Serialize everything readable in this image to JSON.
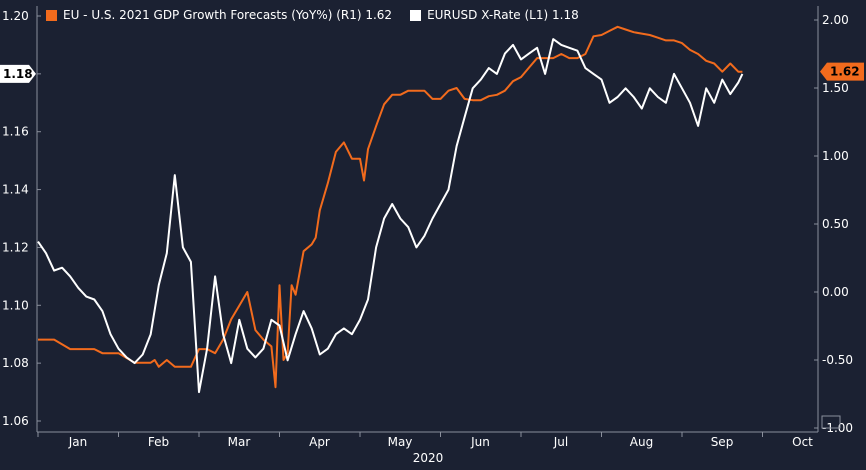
{
  "chart_data": {
    "type": "line",
    "legend": [
      {
        "label": "EU - U.S. 2021 GDP Growth Forecasts (YoY%) (R1) 1.62",
        "color": "#f26b1d"
      },
      {
        "label": "EURUSD X-Rate (L1) 1.18",
        "color": "#ffffff"
      }
    ],
    "left_axis": {
      "ticks": [
        "1.20",
        "1.18",
        "1.16",
        "1.14",
        "1.12",
        "1.10",
        "1.08",
        "1.06"
      ],
      "ylim": [
        1.06,
        1.2
      ]
    },
    "right_axis": {
      "ticks": [
        "2.00",
        "1.50",
        "1.00",
        "0.50",
        "0.00",
        "-0.50",
        "-1.00"
      ],
      "ylim": [
        -1.0,
        2.0
      ]
    },
    "x_axis": {
      "ticks": [
        "Jan",
        "Feb",
        "Mar",
        "Apr",
        "May",
        "Jun",
        "Jul",
        "Aug",
        "Sep",
        "Oct"
      ],
      "year": "2020"
    },
    "last_values": {
      "left": "1.18",
      "right": "1.62"
    },
    "series": [
      {
        "name": "EU - U.S. 2021 GDP Growth Forecasts (YoY%)",
        "axis": "right",
        "color": "#f26b1d",
        "x": [
          0.0,
          0.2,
          0.4,
          0.45,
          0.5,
          0.55,
          0.6,
          0.7,
          0.8,
          0.9,
          1.0,
          1.2,
          1.4,
          1.45,
          1.5,
          1.6,
          1.7,
          1.8,
          1.9,
          2.0,
          2.1,
          2.2,
          2.3,
          2.4,
          2.5,
          2.6,
          2.7,
          2.8,
          2.9,
          2.95,
          3.0,
          3.05,
          3.1,
          3.15,
          3.2,
          3.3,
          3.4,
          3.45,
          3.5,
          3.6,
          3.7,
          3.8,
          3.9,
          4.0,
          4.05,
          4.1,
          4.2,
          4.3,
          4.4,
          4.5,
          4.6,
          4.7,
          4.8,
          4.9,
          5.0,
          5.1,
          5.2,
          5.3,
          5.4,
          5.5,
          5.6,
          5.7,
          5.8,
          5.9,
          6.0,
          6.1,
          6.2,
          6.3,
          6.4,
          6.5,
          6.6,
          6.7,
          6.8,
          6.9,
          7.0,
          7.1,
          7.2,
          7.3,
          7.4,
          7.5,
          7.6,
          7.7,
          7.8,
          7.9,
          8.0,
          8.1,
          8.2,
          8.3,
          8.4,
          8.5,
          8.6,
          8.7,
          8.75
        ],
        "y": [
          -0.35,
          -0.35,
          -0.42,
          -0.42,
          -0.42,
          -0.42,
          -0.42,
          -0.42,
          -0.45,
          -0.45,
          -0.45,
          -0.52,
          -0.52,
          -0.5,
          -0.55,
          -0.5,
          -0.55,
          -0.55,
          -0.55,
          -0.42,
          -0.42,
          -0.45,
          -0.35,
          -0.2,
          -0.1,
          0.0,
          -0.28,
          -0.35,
          -0.4,
          -0.7,
          0.05,
          -0.5,
          -0.45,
          0.05,
          -0.02,
          0.3,
          0.35,
          0.4,
          0.6,
          0.8,
          1.03,
          1.1,
          0.98,
          0.98,
          0.82,
          1.05,
          1.22,
          1.38,
          1.45,
          1.45,
          1.48,
          1.48,
          1.48,
          1.42,
          1.42,
          1.48,
          1.5,
          1.42,
          1.41,
          1.41,
          1.44,
          1.45,
          1.48,
          1.55,
          1.58,
          1.65,
          1.72,
          1.72,
          1.72,
          1.75,
          1.72,
          1.72,
          1.75,
          1.88,
          1.89,
          1.92,
          1.95,
          1.93,
          1.91,
          1.9,
          1.89,
          1.87,
          1.85,
          1.85,
          1.83,
          1.78,
          1.75,
          1.7,
          1.68,
          1.62,
          1.68,
          1.62,
          1.62
        ]
      },
      {
        "name": "EURUSD X-Rate",
        "axis": "left",
        "color": "#ffffff",
        "x": [
          0.0,
          0.1,
          0.2,
          0.3,
          0.4,
          0.5,
          0.6,
          0.7,
          0.8,
          0.9,
          1.0,
          1.1,
          1.2,
          1.3,
          1.4,
          1.5,
          1.6,
          1.7,
          1.8,
          1.9,
          2.0,
          2.1,
          2.2,
          2.3,
          2.4,
          2.5,
          2.6,
          2.7,
          2.8,
          2.9,
          3.0,
          3.1,
          3.2,
          3.3,
          3.4,
          3.5,
          3.6,
          3.7,
          3.8,
          3.9,
          4.0,
          4.1,
          4.2,
          4.3,
          4.4,
          4.5,
          4.6,
          4.7,
          4.8,
          4.9,
          5.0,
          5.1,
          5.2,
          5.3,
          5.4,
          5.5,
          5.6,
          5.7,
          5.8,
          5.9,
          6.0,
          6.1,
          6.2,
          6.3,
          6.4,
          6.5,
          6.6,
          6.7,
          6.8,
          6.9,
          7.0,
          7.1,
          7.2,
          7.3,
          7.4,
          7.5,
          7.6,
          7.7,
          7.8,
          7.9,
          8.0,
          8.1,
          8.2,
          8.3,
          8.4,
          8.5,
          8.6,
          8.7,
          8.75
        ],
        "y": [
          1.122,
          1.118,
          1.112,
          1.113,
          1.11,
          1.106,
          1.103,
          1.102,
          1.098,
          1.09,
          1.085,
          1.082,
          1.08,
          1.083,
          1.09,
          1.107,
          1.118,
          1.145,
          1.12,
          1.115,
          1.07,
          1.085,
          1.11,
          1.09,
          1.08,
          1.095,
          1.085,
          1.082,
          1.085,
          1.095,
          1.093,
          1.081,
          1.09,
          1.098,
          1.092,
          1.083,
          1.085,
          1.09,
          1.092,
          1.09,
          1.095,
          1.102,
          1.12,
          1.13,
          1.135,
          1.13,
          1.127,
          1.12,
          1.124,
          1.13,
          1.135,
          1.14,
          1.155,
          1.165,
          1.175,
          1.178,
          1.182,
          1.18,
          1.187,
          1.19,
          1.185,
          1.187,
          1.189,
          1.18,
          1.192,
          1.19,
          1.189,
          1.188,
          1.182,
          1.18,
          1.178,
          1.17,
          1.172,
          1.175,
          1.172,
          1.168,
          1.175,
          1.172,
          1.17,
          1.18,
          1.175,
          1.17,
          1.162,
          1.175,
          1.17,
          1.178,
          1.173,
          1.177,
          1.18
        ]
      }
    ]
  }
}
